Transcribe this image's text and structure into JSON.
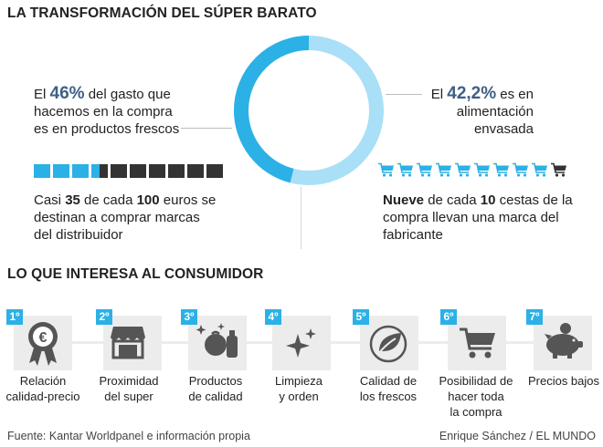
{
  "title": "LA TRANSFORMACIÓN DEL SÚPER BARATO",
  "left_stat": {
    "pre": "El ",
    "value": "46%",
    "post_1": " del gasto que",
    "line2": "hacemos en la compra",
    "line3": "es en productos frescos",
    "percent": 46
  },
  "right_stat": {
    "pre": "El ",
    "value": "42,2%",
    "post_1": " es en",
    "line2": "alimentación",
    "line3": "envasada",
    "percent": 42.2
  },
  "squares": {
    "filled": 3.5,
    "total": 10
  },
  "left_caption": {
    "t1": "Casi ",
    "n1": "35",
    "t2": " de cada ",
    "n2": "100",
    "t3": " euros se",
    "line2": "destinan a comprar marcas",
    "line3": "del distribuidor"
  },
  "carts": {
    "brand": 9,
    "total": 10
  },
  "right_caption": {
    "n1": "Nueve",
    "t1": " de cada ",
    "n2": "10",
    "t2": " cestas de la",
    "line2": "compra llevan una marca del",
    "line3": "fabricante"
  },
  "section2_title": "LO QUE INTERESA AL CONSUMIDOR",
  "steps": [
    {
      "rank": "1º",
      "icon": "rosette-euro-icon",
      "l1": "Relación",
      "l2": "calidad-precio",
      "l3": ""
    },
    {
      "rank": "2º",
      "icon": "store-icon",
      "l1": "Proximidad",
      "l2": "del super",
      "l3": ""
    },
    {
      "rank": "3º",
      "icon": "grocery-products-icon",
      "l1": "Productos",
      "l2": "de calidad",
      "l3": ""
    },
    {
      "rank": "4º",
      "icon": "sparkle-icon",
      "l1": "Limpieza",
      "l2": "y orden",
      "l3": ""
    },
    {
      "rank": "5º",
      "icon": "leaf-icon",
      "l1": "Calidad de",
      "l2": "los frescos",
      "l3": ""
    },
    {
      "rank": "6º",
      "icon": "shopping-cart-icon",
      "l1": "Posibilidad de",
      "l2": "hacer toda",
      "l3": "la compra"
    },
    {
      "rank": "7º",
      "icon": "piggy-bank-icon",
      "l1": "Precios bajos",
      "l2": "",
      "l3": ""
    }
  ],
  "footer": {
    "source": "Fuente: Kantar Worldpanel e información propia",
    "credit": "Enrique Sánchez / EL MUNDO"
  },
  "colors": {
    "dark_blue": "#2bb1e6",
    "light_blue": "#a9dff7",
    "dark_square": "#333333",
    "text_accent": "#3f5f86",
    "icon_bg": "#ececec"
  }
}
